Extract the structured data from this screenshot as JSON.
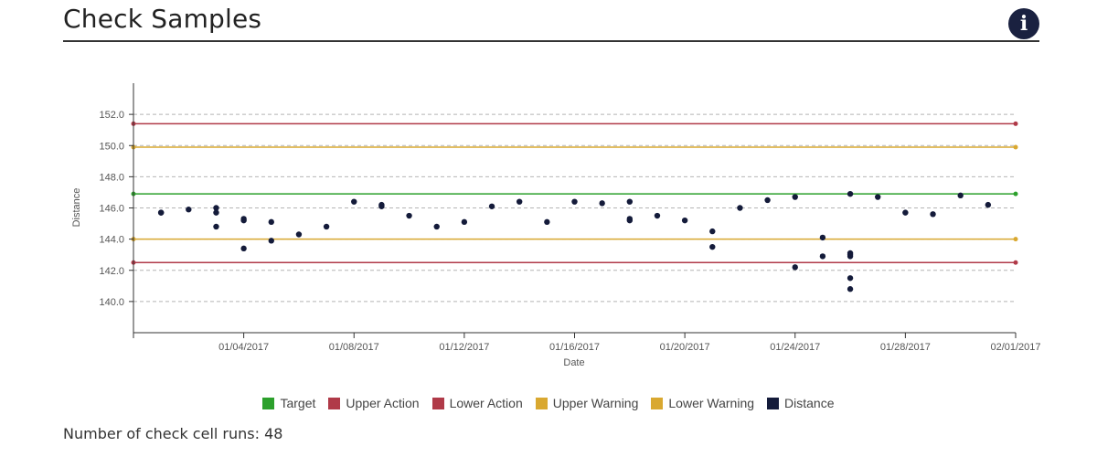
{
  "header": {
    "title": "Check Samples",
    "info_icon": "info-icon",
    "info_glyph": "i"
  },
  "footer": {
    "runs_label": "Number of check cell runs: 48"
  },
  "colors": {
    "target": "#2ca02c",
    "action": "#b03a48",
    "warning": "#d9a830",
    "distance": "#141b3a",
    "grid": "#b5b5b5"
  },
  "chart_data": {
    "type": "scatter",
    "title": "",
    "xlabel": "Date",
    "ylabel": "Distance",
    "xlim": [
      "2016-12-31",
      "2017-02-01"
    ],
    "ylim": [
      138.0,
      154.0
    ],
    "x_ticks": [
      "01/04/2017",
      "01/08/2017",
      "01/12/2017",
      "01/16/2017",
      "01/20/2017",
      "01/24/2017",
      "01/28/2017",
      "02/01/2017"
    ],
    "y_ticks": [
      "140.0",
      "142.0",
      "144.0",
      "146.0",
      "148.0",
      "150.0",
      "152.0"
    ],
    "grid": "horizontal dashed",
    "legend_position": "bottom",
    "reference_lines": [
      {
        "name": "Target",
        "value": 146.9,
        "color": "#2ca02c"
      },
      {
        "name": "Upper Action",
        "value": 151.4,
        "color": "#b03a48"
      },
      {
        "name": "Lower Action",
        "value": 142.5,
        "color": "#b03a48"
      },
      {
        "name": "Upper Warning",
        "value": 149.9,
        "color": "#d9a830"
      },
      {
        "name": "Lower Warning",
        "value": 144.0,
        "color": "#d9a830"
      }
    ],
    "series": [
      {
        "name": "Distance",
        "color": "#141b3a",
        "points": [
          [
            "2017-01-01",
            145.7
          ],
          [
            "2017-01-02",
            145.9
          ],
          [
            "2017-01-03",
            146.0
          ],
          [
            "2017-01-03",
            145.7
          ],
          [
            "2017-01-03",
            144.8
          ],
          [
            "2017-01-04",
            145.3
          ],
          [
            "2017-01-04",
            145.2
          ],
          [
            "2017-01-04",
            143.4
          ],
          [
            "2017-01-05",
            145.1
          ],
          [
            "2017-01-05",
            143.9
          ],
          [
            "2017-01-06",
            144.3
          ],
          [
            "2017-01-07",
            144.8
          ],
          [
            "2017-01-08",
            146.4
          ],
          [
            "2017-01-09",
            146.2
          ],
          [
            "2017-01-09",
            146.1
          ],
          [
            "2017-01-10",
            145.5
          ],
          [
            "2017-01-11",
            144.8
          ],
          [
            "2017-01-12",
            145.1
          ],
          [
            "2017-01-13",
            146.1
          ],
          [
            "2017-01-14",
            146.4
          ],
          [
            "2017-01-15",
            145.1
          ],
          [
            "2017-01-16",
            146.4
          ],
          [
            "2017-01-17",
            146.3
          ],
          [
            "2017-01-18",
            146.4
          ],
          [
            "2017-01-18",
            145.3
          ],
          [
            "2017-01-18",
            145.2
          ],
          [
            "2017-01-19",
            145.5
          ],
          [
            "2017-01-20",
            145.2
          ],
          [
            "2017-01-21",
            144.5
          ],
          [
            "2017-01-21",
            143.5
          ],
          [
            "2017-01-22",
            146.0
          ],
          [
            "2017-01-23",
            146.5
          ],
          [
            "2017-01-24",
            146.7
          ],
          [
            "2017-01-24",
            142.2
          ],
          [
            "2017-01-25",
            144.1
          ],
          [
            "2017-01-25",
            142.9
          ],
          [
            "2017-01-26",
            146.9
          ],
          [
            "2017-01-26",
            143.1
          ],
          [
            "2017-01-26",
            143.0
          ],
          [
            "2017-01-26",
            142.9
          ],
          [
            "2017-01-26",
            141.5
          ],
          [
            "2017-01-26",
            140.8
          ],
          [
            "2017-01-27",
            146.7
          ],
          [
            "2017-01-28",
            145.7
          ],
          [
            "2017-01-29",
            145.6
          ],
          [
            "2017-01-30",
            146.8
          ],
          [
            "2017-01-31",
            146.2
          ],
          [
            "2017-01-01",
            145.7
          ]
        ]
      }
    ]
  },
  "legend": [
    {
      "label": "Target",
      "color": "#2ca02c"
    },
    {
      "label": "Upper Action",
      "color": "#b03a48"
    },
    {
      "label": "Lower Action",
      "color": "#b03a48"
    },
    {
      "label": "Upper Warning",
      "color": "#d9a830"
    },
    {
      "label": "Lower Warning",
      "color": "#d9a830"
    },
    {
      "label": "Distance",
      "color": "#141b3a"
    }
  ]
}
